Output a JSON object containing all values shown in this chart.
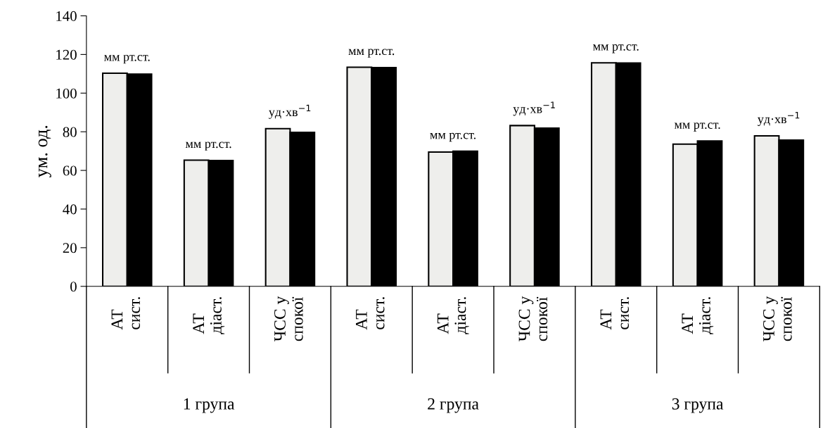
{
  "chart_data": {
    "type": "bar",
    "ylabel": "ум. од.",
    "categories": [
      "АТ\nсист.",
      "АТ\nдіаст.",
      "ЧСС у\nспокої",
      "АТ\nсист.",
      "АТ\nдіаст.",
      "ЧСС у\nспокої",
      "АТ\nсист.",
      "АТ\nдіаст.",
      "ЧСС у\nспокої"
    ],
    "series": [
      {
        "color": "#eeeeec",
        "values": [
          110.3,
          65.3,
          81.6,
          113.4,
          69.5,
          83.2,
          115.7,
          73.6,
          77.9
        ]
      },
      {
        "color": "#000000",
        "values": [
          109.8,
          65.1,
          79.7,
          113.2,
          69.9,
          81.9,
          115.6,
          75.2,
          75.7
        ]
      }
    ],
    "ylim": [
      0,
      140
    ],
    "yticks": [
      0,
      20,
      40,
      60,
      80,
      100,
      120,
      140
    ],
    "grid": false,
    "legend": false,
    "annotations": [
      "мм рт.ст.",
      "мм рт.ст.",
      "уд·хв$^{−1}$",
      "мм рт.ст.",
      "мм рт.ст.",
      "уд·хв$^{−1}$",
      "мм рт.ст.",
      "мм рт.ст.",
      "уд·хв$^{−1}$",
      "1 група",
      "2 група",
      "3 група"
    ]
  }
}
